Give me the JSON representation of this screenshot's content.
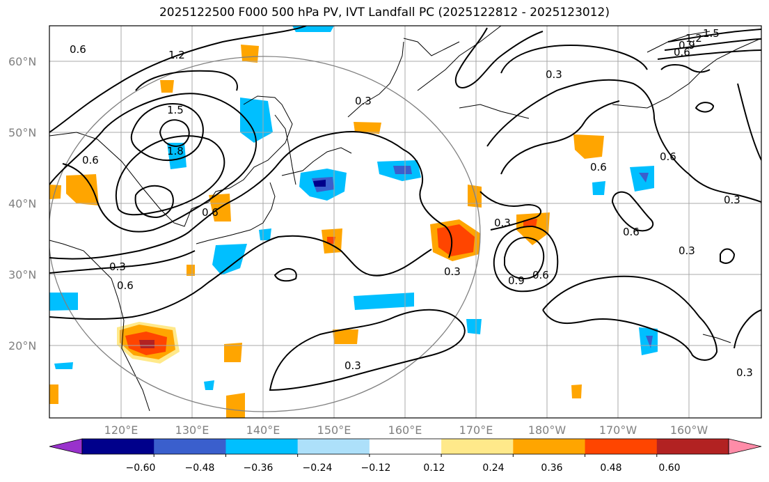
{
  "title": "2025122500 F000 500 hPa PV, IVT Landfall PC (2025122812 - 2025123012)",
  "lat_labels": [
    "60°N",
    "50°N",
    "40°N",
    "30°N",
    "20°N"
  ],
  "lon_labels": [
    "120°E",
    "130°E",
    "140°E",
    "150°E",
    "160°E",
    "170°E",
    "180°W",
    "170°W",
    "160°W"
  ],
  "contour_labels": [
    "0.6",
    "1.2",
    "1.5",
    "1.8",
    "0.3",
    "0.6",
    "0.3",
    "0.6",
    "1.5",
    "1.2",
    "0.9",
    "0.6",
    "0.3",
    "0.6",
    "0.6",
    "0.3",
    "0.3",
    "0.6",
    "0.3",
    "0.9",
    "0.6",
    "0.3",
    "0.3",
    "0.6",
    "0.3"
  ],
  "colorbar": {
    "ticks": [
      "−0.60",
      "−0.48",
      "−0.36",
      "−0.24",
      "−0.12",
      "0.12",
      "0.24",
      "0.36",
      "0.48",
      "0.60"
    ],
    "colors": [
      "#9932CC",
      "#00008B",
      "#3A5FCD",
      "#00BFFF",
      "#ADE0FA",
      "#FFFFFF",
      "#FFE98A",
      "#FFA500",
      "#FF4500",
      "#B22222",
      "#FF8CA8"
    ]
  }
}
